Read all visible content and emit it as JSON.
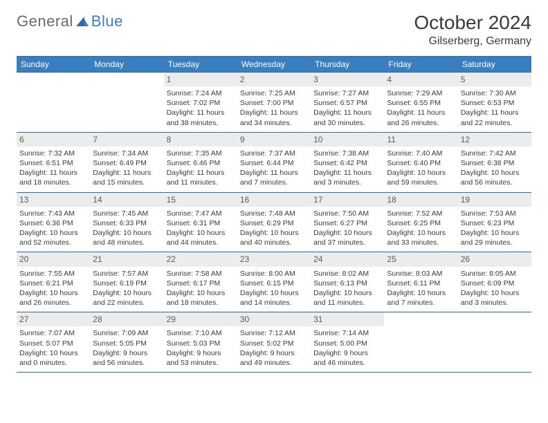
{
  "logo": {
    "text1": "General",
    "text2": "Blue"
  },
  "title": "October 2024",
  "location": "Gilserberg, Germany",
  "colors": {
    "header_bg": "#3a7ec2",
    "header_text": "#ffffff",
    "rule": "#2e6aa6",
    "daynum_bg": "#ececec",
    "body_text": "#3a3a3a",
    "page_bg": "#ffffff"
  },
  "day_labels": [
    "Sunday",
    "Monday",
    "Tuesday",
    "Wednesday",
    "Thursday",
    "Friday",
    "Saturday"
  ],
  "first_weekday_index": 2,
  "days": [
    {
      "n": 1,
      "sunrise": "7:24 AM",
      "sunset": "7:02 PM",
      "dh": 11,
      "dm": 38
    },
    {
      "n": 2,
      "sunrise": "7:25 AM",
      "sunset": "7:00 PM",
      "dh": 11,
      "dm": 34
    },
    {
      "n": 3,
      "sunrise": "7:27 AM",
      "sunset": "6:57 PM",
      "dh": 11,
      "dm": 30
    },
    {
      "n": 4,
      "sunrise": "7:29 AM",
      "sunset": "6:55 PM",
      "dh": 11,
      "dm": 26
    },
    {
      "n": 5,
      "sunrise": "7:30 AM",
      "sunset": "6:53 PM",
      "dh": 11,
      "dm": 22
    },
    {
      "n": 6,
      "sunrise": "7:32 AM",
      "sunset": "6:51 PM",
      "dh": 11,
      "dm": 18
    },
    {
      "n": 7,
      "sunrise": "7:34 AM",
      "sunset": "6:49 PM",
      "dh": 11,
      "dm": 15
    },
    {
      "n": 8,
      "sunrise": "7:35 AM",
      "sunset": "6:46 PM",
      "dh": 11,
      "dm": 11
    },
    {
      "n": 9,
      "sunrise": "7:37 AM",
      "sunset": "6:44 PM",
      "dh": 11,
      "dm": 7
    },
    {
      "n": 10,
      "sunrise": "7:38 AM",
      "sunset": "6:42 PM",
      "dh": 11,
      "dm": 3
    },
    {
      "n": 11,
      "sunrise": "7:40 AM",
      "sunset": "6:40 PM",
      "dh": 10,
      "dm": 59
    },
    {
      "n": 12,
      "sunrise": "7:42 AM",
      "sunset": "6:38 PM",
      "dh": 10,
      "dm": 56
    },
    {
      "n": 13,
      "sunrise": "7:43 AM",
      "sunset": "6:36 PM",
      "dh": 10,
      "dm": 52
    },
    {
      "n": 14,
      "sunrise": "7:45 AM",
      "sunset": "6:33 PM",
      "dh": 10,
      "dm": 48
    },
    {
      "n": 15,
      "sunrise": "7:47 AM",
      "sunset": "6:31 PM",
      "dh": 10,
      "dm": 44
    },
    {
      "n": 16,
      "sunrise": "7:48 AM",
      "sunset": "6:29 PM",
      "dh": 10,
      "dm": 40
    },
    {
      "n": 17,
      "sunrise": "7:50 AM",
      "sunset": "6:27 PM",
      "dh": 10,
      "dm": 37
    },
    {
      "n": 18,
      "sunrise": "7:52 AM",
      "sunset": "6:25 PM",
      "dh": 10,
      "dm": 33
    },
    {
      "n": 19,
      "sunrise": "7:53 AM",
      "sunset": "6:23 PM",
      "dh": 10,
      "dm": 29
    },
    {
      "n": 20,
      "sunrise": "7:55 AM",
      "sunset": "6:21 PM",
      "dh": 10,
      "dm": 26
    },
    {
      "n": 21,
      "sunrise": "7:57 AM",
      "sunset": "6:19 PM",
      "dh": 10,
      "dm": 22
    },
    {
      "n": 22,
      "sunrise": "7:58 AM",
      "sunset": "6:17 PM",
      "dh": 10,
      "dm": 18
    },
    {
      "n": 23,
      "sunrise": "8:00 AM",
      "sunset": "6:15 PM",
      "dh": 10,
      "dm": 14
    },
    {
      "n": 24,
      "sunrise": "8:02 AM",
      "sunset": "6:13 PM",
      "dh": 10,
      "dm": 11
    },
    {
      "n": 25,
      "sunrise": "8:03 AM",
      "sunset": "6:11 PM",
      "dh": 10,
      "dm": 7
    },
    {
      "n": 26,
      "sunrise": "8:05 AM",
      "sunset": "6:09 PM",
      "dh": 10,
      "dm": 3
    },
    {
      "n": 27,
      "sunrise": "7:07 AM",
      "sunset": "5:07 PM",
      "dh": 10,
      "dm": 0
    },
    {
      "n": 28,
      "sunrise": "7:09 AM",
      "sunset": "5:05 PM",
      "dh": 9,
      "dm": 56
    },
    {
      "n": 29,
      "sunrise": "7:10 AM",
      "sunset": "5:03 PM",
      "dh": 9,
      "dm": 53
    },
    {
      "n": 30,
      "sunrise": "7:12 AM",
      "sunset": "5:02 PM",
      "dh": 9,
      "dm": 49
    },
    {
      "n": 31,
      "sunrise": "7:14 AM",
      "sunset": "5:00 PM",
      "dh": 9,
      "dm": 46
    }
  ]
}
